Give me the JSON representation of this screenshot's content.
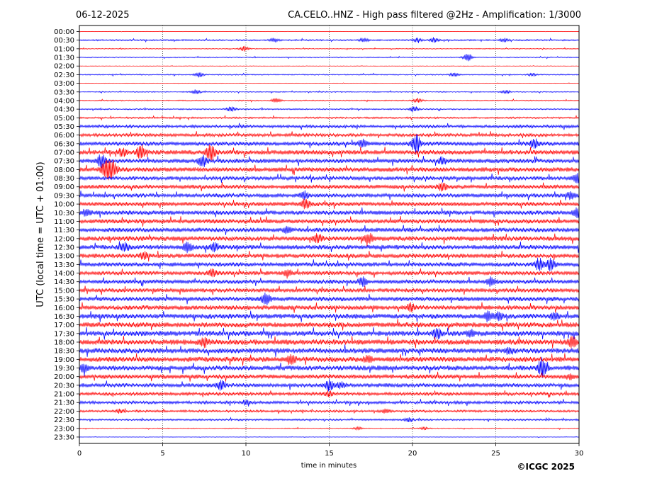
{
  "header": {
    "date": "06-12-2025",
    "title": "CA.CELO..HNZ - High pass filtered @2Hz - Amplification: 1/3000"
  },
  "copyright": "©ICGC 2025",
  "chart_data": {
    "type": "line",
    "subtype": "helicorder",
    "xlabel": "time in minutes",
    "ylabel": "UTC (local time = UTC + 01:00)",
    "xlim": [
      0,
      30
    ],
    "x_ticks": [
      "0",
      "5",
      "10",
      "15",
      "20",
      "25",
      "30"
    ],
    "vertical_gridlines_at": [
      5,
      10,
      15,
      20,
      25
    ],
    "colors": {
      "odd_rows": "#ff0000",
      "even_rows": "#0000ff",
      "grid": "#000000"
    },
    "row_labels": [
      "00:00",
      "00:30",
      "01:00",
      "01:30",
      "02:00",
      "02:30",
      "03:00",
      "03:30",
      "04:00",
      "04:30",
      "05:00",
      "05:30",
      "06:00",
      "06:30",
      "07:00",
      "07:30",
      "08:00",
      "08:30",
      "09:00",
      "09:30",
      "10:00",
      "10:30",
      "11:00",
      "11:30",
      "12:00",
      "12:30",
      "13:00",
      "13:30",
      "14:00",
      "14:30",
      "15:00",
      "15:30",
      "16:00",
      "16:30",
      "17:00",
      "17:30",
      "18:00",
      "18:30",
      "19:00",
      "19:30",
      "20:00",
      "20:30",
      "21:00",
      "21:30",
      "22:00",
      "22:30",
      "23:00",
      "23:30"
    ],
    "row_activity": [
      0.2,
      1.0,
      0.6,
      0.7,
      0.3,
      0.8,
      0.3,
      0.7,
      0.8,
      0.9,
      1.2,
      2.0,
      2.2,
      2.8,
      3.2,
      3.0,
      3.2,
      2.6,
      2.8,
      2.8,
      2.8,
      3.0,
      3.0,
      3.0,
      3.2,
      3.2,
      3.0,
      3.0,
      2.8,
      2.8,
      2.8,
      3.0,
      3.2,
      3.4,
      3.6,
      3.6,
      3.8,
      3.6,
      3.6,
      3.4,
      3.0,
      2.8,
      2.2,
      2.0,
      1.6,
      1.2,
      0.6,
      0.3
    ],
    "events": [
      {
        "row": 1,
        "t": 11.7,
        "amp": 3
      },
      {
        "row": 1,
        "t": 17.1,
        "amp": 3
      },
      {
        "row": 1,
        "t": 20.3,
        "amp": 3
      },
      {
        "row": 1,
        "t": 21.3,
        "amp": 3.5
      },
      {
        "row": 1,
        "t": 25.5,
        "amp": 2.5
      },
      {
        "row": 2,
        "t": 9.9,
        "amp": 4
      },
      {
        "row": 3,
        "t": 23.3,
        "amp": 6
      },
      {
        "row": 5,
        "t": 7.2,
        "amp": 3.5
      },
      {
        "row": 5,
        "t": 22.5,
        "amp": 3
      },
      {
        "row": 5,
        "t": 27.2,
        "amp": 2
      },
      {
        "row": 7,
        "t": 7.0,
        "amp": 3
      },
      {
        "row": 7,
        "t": 25.6,
        "amp": 2.5
      },
      {
        "row": 8,
        "t": 11.8,
        "amp": 3
      },
      {
        "row": 8,
        "t": 20.3,
        "amp": 3
      },
      {
        "row": 9,
        "t": 9.1,
        "amp": 4
      },
      {
        "row": 9,
        "t": 20.1,
        "amp": 4
      },
      {
        "row": 13,
        "t": 17.0,
        "amp": 5
      },
      {
        "row": 13,
        "t": 20.2,
        "amp": 14
      },
      {
        "row": 13,
        "t": 27.3,
        "amp": 7
      },
      {
        "row": 14,
        "t": 3.7,
        "amp": 10
      },
      {
        "row": 14,
        "t": 7.9,
        "amp": 12
      },
      {
        "row": 14,
        "t": 2.6,
        "amp": 5
      },
      {
        "row": 15,
        "t": 1.3,
        "amp": 9
      },
      {
        "row": 15,
        "t": 7.4,
        "amp": 8
      },
      {
        "row": 15,
        "t": 21.8,
        "amp": 4
      },
      {
        "row": 16,
        "t": 1.6,
        "amp": 14
      },
      {
        "row": 16,
        "t": 2.0,
        "amp": 12
      },
      {
        "row": 17,
        "t": 29.9,
        "amp": 7
      },
      {
        "row": 18,
        "t": 21.8,
        "amp": 6
      },
      {
        "row": 19,
        "t": 13.5,
        "amp": 5
      },
      {
        "row": 19,
        "t": 29.5,
        "amp": 5
      },
      {
        "row": 20,
        "t": 13.6,
        "amp": 7
      },
      {
        "row": 21,
        "t": 0.4,
        "amp": 4
      },
      {
        "row": 21,
        "t": 29.9,
        "amp": 6
      },
      {
        "row": 23,
        "t": 12.5,
        "amp": 4
      },
      {
        "row": 24,
        "t": 14.3,
        "amp": 6
      },
      {
        "row": 24,
        "t": 17.4,
        "amp": 6
      },
      {
        "row": 25,
        "t": 2.7,
        "amp": 6
      },
      {
        "row": 25,
        "t": 6.5,
        "amp": 7
      },
      {
        "row": 25,
        "t": 8.1,
        "amp": 6
      },
      {
        "row": 26,
        "t": 3.9,
        "amp": 5
      },
      {
        "row": 27,
        "t": 27.6,
        "amp": 8
      },
      {
        "row": 27,
        "t": 28.3,
        "amp": 8
      },
      {
        "row": 28,
        "t": 8.0,
        "amp": 5
      },
      {
        "row": 28,
        "t": 12.5,
        "amp": 4
      },
      {
        "row": 29,
        "t": 17.0,
        "amp": 6
      },
      {
        "row": 29,
        "t": 24.7,
        "amp": 6
      },
      {
        "row": 31,
        "t": 11.2,
        "amp": 7
      },
      {
        "row": 32,
        "t": 19.9,
        "amp": 5
      },
      {
        "row": 33,
        "t": 24.5,
        "amp": 6
      },
      {
        "row": 33,
        "t": 25.2,
        "amp": 5
      },
      {
        "row": 33,
        "t": 28.5,
        "amp": 5
      },
      {
        "row": 35,
        "t": 21.5,
        "amp": 7
      },
      {
        "row": 35,
        "t": 23.5,
        "amp": 4
      },
      {
        "row": 36,
        "t": 29.6,
        "amp": 7
      },
      {
        "row": 36,
        "t": 7.5,
        "amp": 5
      },
      {
        "row": 37,
        "t": 25.8,
        "amp": 4
      },
      {
        "row": 38,
        "t": 12.7,
        "amp": 6
      },
      {
        "row": 38,
        "t": 17.3,
        "amp": 4
      },
      {
        "row": 39,
        "t": 27.8,
        "amp": 13
      },
      {
        "row": 39,
        "t": 0.3,
        "amp": 5
      },
      {
        "row": 40,
        "t": 29.5,
        "amp": 3
      },
      {
        "row": 41,
        "t": 8.5,
        "amp": 6
      },
      {
        "row": 41,
        "t": 15.0,
        "amp": 7
      },
      {
        "row": 41,
        "t": 15.7,
        "amp": 4
      },
      {
        "row": 42,
        "t": 15.0,
        "amp": 4
      },
      {
        "row": 43,
        "t": 10.0,
        "amp": 3
      },
      {
        "row": 44,
        "t": 18.4,
        "amp": 3
      },
      {
        "row": 44,
        "t": 2.4,
        "amp": 3
      },
      {
        "row": 45,
        "t": 19.8,
        "amp": 3
      },
      {
        "row": 46,
        "t": 16.7,
        "amp": 2
      },
      {
        "row": 46,
        "t": 20.7,
        "amp": 2
      }
    ]
  }
}
